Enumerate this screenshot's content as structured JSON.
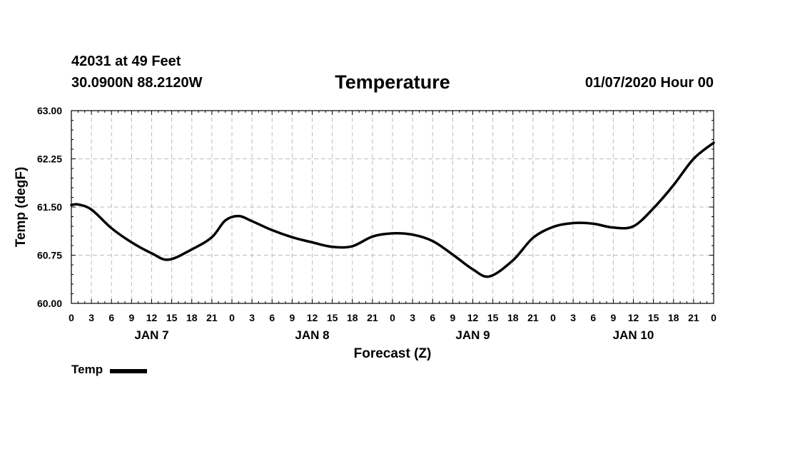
{
  "header": {
    "station": "42031 at 49 Feet",
    "coords": "30.0900N 88.2120W",
    "title": "Temperature",
    "run": "01/07/2020 Hour 00"
  },
  "chart_data": {
    "type": "line",
    "title": "Temperature",
    "xlabel": "Forecast (Z)",
    "ylabel": "Temp (degF)",
    "ylim": [
      60.0,
      63.0
    ],
    "xlim": [
      0,
      96
    ],
    "yticks": [
      60.0,
      60.75,
      61.5,
      62.25,
      63.0
    ],
    "ytick_labels": [
      "60.00",
      "60.75",
      "61.50",
      "62.25",
      "63.00"
    ],
    "xtick_labels": [
      "0",
      "3",
      "6",
      "9",
      "12",
      "15",
      "18",
      "21",
      "0",
      "3",
      "6",
      "9",
      "12",
      "15",
      "18",
      "21",
      "0",
      "3",
      "6",
      "9",
      "12",
      "15",
      "18",
      "21",
      "0",
      "3",
      "6",
      "9",
      "12",
      "15",
      "18",
      "21",
      "0"
    ],
    "day_labels": [
      {
        "label": "JAN 7",
        "hour": 12
      },
      {
        "label": "JAN 8",
        "hour": 36
      },
      {
        "label": "JAN 9",
        "hour": 60
      },
      {
        "label": "JAN 10",
        "hour": 84
      }
    ],
    "grid": true,
    "legend": "bottom-left",
    "series": [
      {
        "name": "Temp",
        "color": "#000000",
        "x": [
          0,
          1,
          3,
          6,
          9,
          12,
          14.5,
          18,
          21,
          23,
          25,
          27,
          30,
          33,
          36,
          39,
          42,
          45,
          48,
          51,
          54,
          57,
          60,
          62.5,
          66,
          69,
          72,
          75,
          78,
          81,
          84,
          87,
          90,
          93,
          96
        ],
        "values": [
          61.53,
          61.54,
          61.46,
          61.17,
          60.95,
          60.78,
          60.68,
          60.84,
          61.03,
          61.29,
          61.36,
          61.28,
          61.14,
          61.03,
          60.95,
          60.88,
          60.89,
          61.04,
          61.09,
          61.07,
          60.97,
          60.76,
          60.53,
          60.42,
          60.67,
          61.02,
          61.19,
          61.25,
          61.24,
          61.18,
          61.2,
          61.48,
          61.84,
          62.25,
          62.5
        ]
      }
    ]
  },
  "legend": {
    "label": "Temp"
  }
}
